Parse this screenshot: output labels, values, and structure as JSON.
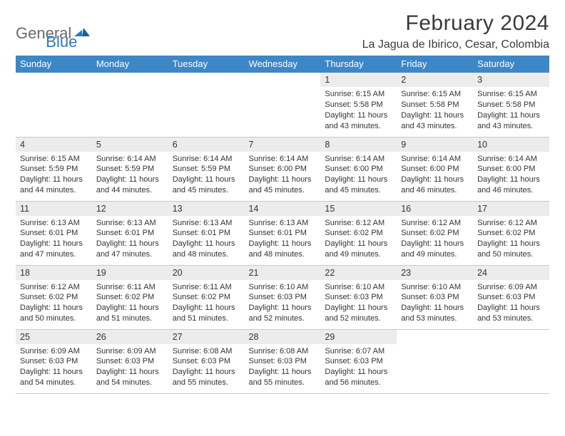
{
  "brand": {
    "text1": "General",
    "text2": "Blue"
  },
  "title": "February 2024",
  "location": "La Jagua de Ibirico, Cesar, Colombia",
  "colors": {
    "header_bg": "#3d87c7",
    "header_fg": "#ffffff",
    "daynum_bg": "#ececec",
    "row_divider": "#c9c9c9",
    "brand_gray": "#6a6a6a",
    "brand_blue": "#2e79b8",
    "text": "#333333",
    "page_bg": "#ffffff"
  },
  "weekdays": [
    "Sunday",
    "Monday",
    "Tuesday",
    "Wednesday",
    "Thursday",
    "Friday",
    "Saturday"
  ],
  "weeks": [
    [
      {
        "n": "",
        "sunrise": "",
        "sunset": "",
        "daylight": ""
      },
      {
        "n": "",
        "sunrise": "",
        "sunset": "",
        "daylight": ""
      },
      {
        "n": "",
        "sunrise": "",
        "sunset": "",
        "daylight": ""
      },
      {
        "n": "",
        "sunrise": "",
        "sunset": "",
        "daylight": ""
      },
      {
        "n": "1",
        "sunrise": "Sunrise: 6:15 AM",
        "sunset": "Sunset: 5:58 PM",
        "daylight": "Daylight: 11 hours and 43 minutes."
      },
      {
        "n": "2",
        "sunrise": "Sunrise: 6:15 AM",
        "sunset": "Sunset: 5:58 PM",
        "daylight": "Daylight: 11 hours and 43 minutes."
      },
      {
        "n": "3",
        "sunrise": "Sunrise: 6:15 AM",
        "sunset": "Sunset: 5:58 PM",
        "daylight": "Daylight: 11 hours and 43 minutes."
      }
    ],
    [
      {
        "n": "4",
        "sunrise": "Sunrise: 6:15 AM",
        "sunset": "Sunset: 5:59 PM",
        "daylight": "Daylight: 11 hours and 44 minutes."
      },
      {
        "n": "5",
        "sunrise": "Sunrise: 6:14 AM",
        "sunset": "Sunset: 5:59 PM",
        "daylight": "Daylight: 11 hours and 44 minutes."
      },
      {
        "n": "6",
        "sunrise": "Sunrise: 6:14 AM",
        "sunset": "Sunset: 5:59 PM",
        "daylight": "Daylight: 11 hours and 45 minutes."
      },
      {
        "n": "7",
        "sunrise": "Sunrise: 6:14 AM",
        "sunset": "Sunset: 6:00 PM",
        "daylight": "Daylight: 11 hours and 45 minutes."
      },
      {
        "n": "8",
        "sunrise": "Sunrise: 6:14 AM",
        "sunset": "Sunset: 6:00 PM",
        "daylight": "Daylight: 11 hours and 45 minutes."
      },
      {
        "n": "9",
        "sunrise": "Sunrise: 6:14 AM",
        "sunset": "Sunset: 6:00 PM",
        "daylight": "Daylight: 11 hours and 46 minutes."
      },
      {
        "n": "10",
        "sunrise": "Sunrise: 6:14 AM",
        "sunset": "Sunset: 6:00 PM",
        "daylight": "Daylight: 11 hours and 46 minutes."
      }
    ],
    [
      {
        "n": "11",
        "sunrise": "Sunrise: 6:13 AM",
        "sunset": "Sunset: 6:01 PM",
        "daylight": "Daylight: 11 hours and 47 minutes."
      },
      {
        "n": "12",
        "sunrise": "Sunrise: 6:13 AM",
        "sunset": "Sunset: 6:01 PM",
        "daylight": "Daylight: 11 hours and 47 minutes."
      },
      {
        "n": "13",
        "sunrise": "Sunrise: 6:13 AM",
        "sunset": "Sunset: 6:01 PM",
        "daylight": "Daylight: 11 hours and 48 minutes."
      },
      {
        "n": "14",
        "sunrise": "Sunrise: 6:13 AM",
        "sunset": "Sunset: 6:01 PM",
        "daylight": "Daylight: 11 hours and 48 minutes."
      },
      {
        "n": "15",
        "sunrise": "Sunrise: 6:12 AM",
        "sunset": "Sunset: 6:02 PM",
        "daylight": "Daylight: 11 hours and 49 minutes."
      },
      {
        "n": "16",
        "sunrise": "Sunrise: 6:12 AM",
        "sunset": "Sunset: 6:02 PM",
        "daylight": "Daylight: 11 hours and 49 minutes."
      },
      {
        "n": "17",
        "sunrise": "Sunrise: 6:12 AM",
        "sunset": "Sunset: 6:02 PM",
        "daylight": "Daylight: 11 hours and 50 minutes."
      }
    ],
    [
      {
        "n": "18",
        "sunrise": "Sunrise: 6:12 AM",
        "sunset": "Sunset: 6:02 PM",
        "daylight": "Daylight: 11 hours and 50 minutes."
      },
      {
        "n": "19",
        "sunrise": "Sunrise: 6:11 AM",
        "sunset": "Sunset: 6:02 PM",
        "daylight": "Daylight: 11 hours and 51 minutes."
      },
      {
        "n": "20",
        "sunrise": "Sunrise: 6:11 AM",
        "sunset": "Sunset: 6:02 PM",
        "daylight": "Daylight: 11 hours and 51 minutes."
      },
      {
        "n": "21",
        "sunrise": "Sunrise: 6:10 AM",
        "sunset": "Sunset: 6:03 PM",
        "daylight": "Daylight: 11 hours and 52 minutes."
      },
      {
        "n": "22",
        "sunrise": "Sunrise: 6:10 AM",
        "sunset": "Sunset: 6:03 PM",
        "daylight": "Daylight: 11 hours and 52 minutes."
      },
      {
        "n": "23",
        "sunrise": "Sunrise: 6:10 AM",
        "sunset": "Sunset: 6:03 PM",
        "daylight": "Daylight: 11 hours and 53 minutes."
      },
      {
        "n": "24",
        "sunrise": "Sunrise: 6:09 AM",
        "sunset": "Sunset: 6:03 PM",
        "daylight": "Daylight: 11 hours and 53 minutes."
      }
    ],
    [
      {
        "n": "25",
        "sunrise": "Sunrise: 6:09 AM",
        "sunset": "Sunset: 6:03 PM",
        "daylight": "Daylight: 11 hours and 54 minutes."
      },
      {
        "n": "26",
        "sunrise": "Sunrise: 6:09 AM",
        "sunset": "Sunset: 6:03 PM",
        "daylight": "Daylight: 11 hours and 54 minutes."
      },
      {
        "n": "27",
        "sunrise": "Sunrise: 6:08 AM",
        "sunset": "Sunset: 6:03 PM",
        "daylight": "Daylight: 11 hours and 55 minutes."
      },
      {
        "n": "28",
        "sunrise": "Sunrise: 6:08 AM",
        "sunset": "Sunset: 6:03 PM",
        "daylight": "Daylight: 11 hours and 55 minutes."
      },
      {
        "n": "29",
        "sunrise": "Sunrise: 6:07 AM",
        "sunset": "Sunset: 6:03 PM",
        "daylight": "Daylight: 11 hours and 56 minutes."
      },
      {
        "n": "",
        "sunrise": "",
        "sunset": "",
        "daylight": ""
      },
      {
        "n": "",
        "sunrise": "",
        "sunset": "",
        "daylight": ""
      }
    ]
  ]
}
